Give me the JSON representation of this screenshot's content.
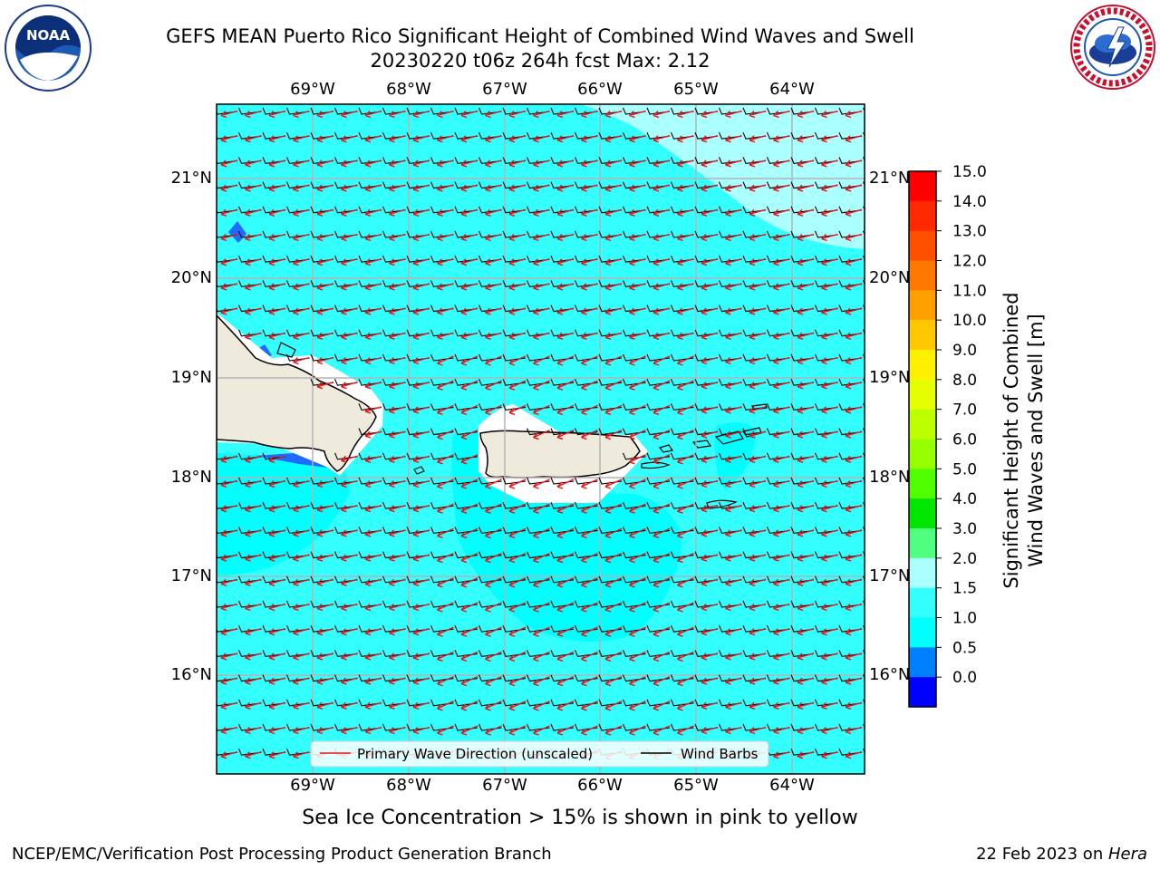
{
  "header": {
    "title_line1": "GEFS MEAN Puerto Rico Significant Height of Combined Wind Waves and Swell",
    "title_line2": "20230220 t06z 264h fcst   Max: 2.12"
  },
  "logos": {
    "left": {
      "icon": "noaa-logo-icon",
      "text": "NOAA"
    },
    "right": {
      "icon": "nws-logo-icon",
      "text": "NATIONAL WEATHER SERVICE"
    }
  },
  "map": {
    "lon_labels": [
      "69°W",
      "68°W",
      "67°W",
      "66°W",
      "65°W",
      "64°W"
    ],
    "lat_labels": [
      "21°N",
      "20°N",
      "19°N",
      "18°N",
      "17°N",
      "16°N"
    ],
    "legend": {
      "wave_label": "Primary Wave Direction (unscaled)",
      "barb_label": "Wind Barbs",
      "wave_color": "#e8161b",
      "barb_color": "#000000"
    },
    "ocean_color": "#33ffff",
    "land_color": "#efebdc"
  },
  "colorbar": {
    "label_line1": "Significant Height of Combined",
    "label_line2": "Wind Waves and Swell [m]",
    "ticks": [
      "15.0",
      "14.0",
      "13.0",
      "12.0",
      "11.0",
      "10.0",
      "9.0",
      "8.0",
      "7.0",
      "6.0",
      "5.0",
      "4.0",
      "3.0",
      "2.0",
      "1.5",
      "1.0",
      "0.5",
      "0.0"
    ],
    "colors_top_to_bottom": [
      "#ff0000",
      "#ff2800",
      "#ff5000",
      "#ff7800",
      "#ffa000",
      "#ffc800",
      "#fff000",
      "#e6ff00",
      "#beff00",
      "#96ff00",
      "#50ff00",
      "#00e600",
      "#50ff80",
      "#aaffff",
      "#33ffff",
      "#00ffff",
      "#0080ff",
      "#0000ff"
    ]
  },
  "caption": "Sea Ice Concentration > 15% is shown in pink to yellow",
  "footer": {
    "left": "NCEP/EMC/Verification Post Processing Product Generation Branch",
    "right_prefix": "22 Feb 2023 on ",
    "right_host": "Hera"
  }
}
